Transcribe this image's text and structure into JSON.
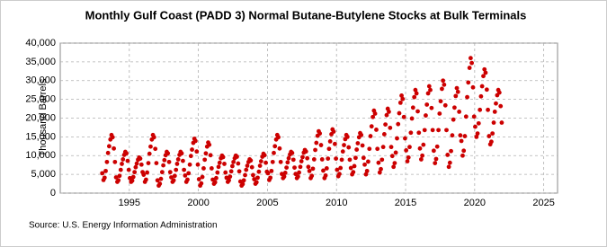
{
  "chart_data": {
    "type": "scatter",
    "title": "Monthly Gulf Coast (PADD 3) Normal Butane-Butylene Stocks at Bulk Terminals",
    "y_label": "Thousand Barrels",
    "source": "Source: U.S. Energy Information Administration",
    "color": "#cc0000",
    "grid": true,
    "xlim": [
      1990,
      2026
    ],
    "xticks": [
      1995,
      2000,
      2005,
      2010,
      2015,
      2020,
      2025
    ],
    "ylim": [
      0,
      40000
    ],
    "yticks": [
      {
        "value": 0,
        "label": "0"
      },
      {
        "value": 5000,
        "label": "5,000"
      },
      {
        "value": 10000,
        "label": "10,000"
      },
      {
        "value": 15000,
        "label": "15,000"
      },
      {
        "value": 20000,
        "label": "20,000"
      },
      {
        "value": 25000,
        "label": "25,000"
      },
      {
        "value": 30000,
        "label": "30,000"
      },
      {
        "value": 35000,
        "label": "35,000"
      },
      {
        "value": 40000,
        "label": "40,000"
      }
    ],
    "x": [
      1993.04,
      1993.13,
      1993.21,
      1993.29,
      1993.38,
      1993.46,
      1993.54,
      1993.63,
      1993.71,
      1993.79,
      1993.88,
      1993.96,
      1994.04,
      1994.13,
      1994.21,
      1994.29,
      1994.38,
      1994.46,
      1994.54,
      1994.63,
      1994.71,
      1994.79,
      1994.88,
      1994.96,
      1995.04,
      1995.13,
      1995.21,
      1995.29,
      1995.38,
      1995.46,
      1995.54,
      1995.63,
      1995.71,
      1995.79,
      1995.88,
      1995.96,
      1996.04,
      1996.13,
      1996.21,
      1996.29,
      1996.38,
      1996.46,
      1996.54,
      1996.63,
      1996.71,
      1996.79,
      1996.88,
      1996.96,
      1997.04,
      1997.13,
      1997.21,
      1997.29,
      1997.38,
      1997.46,
      1997.54,
      1997.63,
      1997.71,
      1997.79,
      1997.88,
      1997.96,
      1998.04,
      1998.13,
      1998.21,
      1998.29,
      1998.38,
      1998.46,
      1998.54,
      1998.63,
      1998.71,
      1998.79,
      1998.88,
      1998.96,
      1999.04,
      1999.13,
      1999.21,
      1999.29,
      1999.38,
      1999.46,
      1999.54,
      1999.63,
      1999.71,
      1999.79,
      1999.88,
      1999.96,
      2000.04,
      2000.13,
      2000.21,
      2000.29,
      2000.38,
      2000.46,
      2000.54,
      2000.63,
      2000.71,
      2000.79,
      2000.88,
      2000.96,
      2001.04,
      2001.13,
      2001.21,
      2001.29,
      2001.38,
      2001.46,
      2001.54,
      2001.63,
      2001.71,
      2001.79,
      2001.88,
      2001.96,
      2002.04,
      2002.13,
      2002.21,
      2002.29,
      2002.38,
      2002.46,
      2002.54,
      2002.63,
      2002.71,
      2002.79,
      2002.88,
      2002.96,
      2003.04,
      2003.13,
      2003.21,
      2003.29,
      2003.38,
      2003.46,
      2003.54,
      2003.63,
      2003.71,
      2003.79,
      2003.88,
      2003.96,
      2004.04,
      2004.13,
      2004.21,
      2004.29,
      2004.38,
      2004.46,
      2004.54,
      2004.63,
      2004.71,
      2004.79,
      2004.88,
      2004.96,
      2005.04,
      2005.13,
      2005.21,
      2005.29,
      2005.38,
      2005.46,
      2005.54,
      2005.63,
      2005.71,
      2005.79,
      2005.88,
      2005.96,
      2006.04,
      2006.13,
      2006.21,
      2006.29,
      2006.38,
      2006.46,
      2006.54,
      2006.63,
      2006.71,
      2006.79,
      2006.88,
      2006.96,
      2007.04,
      2007.13,
      2007.21,
      2007.29,
      2007.38,
      2007.46,
      2007.54,
      2007.63,
      2007.71,
      2007.79,
      2007.88,
      2007.96,
      2008.04,
      2008.13,
      2008.21,
      2008.29,
      2008.38,
      2008.46,
      2008.54,
      2008.63,
      2008.71,
      2008.79,
      2008.88,
      2008.96,
      2009.04,
      2009.13,
      2009.21,
      2009.29,
      2009.38,
      2009.46,
      2009.54,
      2009.63,
      2009.71,
      2009.79,
      2009.88,
      2009.96,
      2010.04,
      2010.13,
      2010.21,
      2010.29,
      2010.38,
      2010.46,
      2010.54,
      2010.63,
      2010.71,
      2010.79,
      2010.88,
      2010.96,
      2011.04,
      2011.13,
      2011.21,
      2011.29,
      2011.38,
      2011.46,
      2011.54,
      2011.63,
      2011.71,
      2011.79,
      2011.88,
      2011.96,
      2012.04,
      2012.13,
      2012.21,
      2012.29,
      2012.38,
      2012.46,
      2012.54,
      2012.63,
      2012.71,
      2012.79,
      2012.88,
      2012.96,
      2013.04,
      2013.13,
      2013.21,
      2013.29,
      2013.38,
      2013.46,
      2013.54,
      2013.63,
      2013.71,
      2013.79,
      2013.88,
      2013.96,
      2014.04,
      2014.13,
      2014.21,
      2014.29,
      2014.38,
      2014.46,
      2014.54,
      2014.63,
      2014.71,
      2014.79,
      2014.88,
      2014.96,
      2015.04,
      2015.13,
      2015.21,
      2015.29,
      2015.38,
      2015.46,
      2015.54,
      2015.63,
      2015.71,
      2015.79,
      2015.88,
      2015.96,
      2016.04,
      2016.13,
      2016.21,
      2016.29,
      2016.38,
      2016.46,
      2016.54,
      2016.63,
      2016.71,
      2016.79,
      2016.88,
      2016.96,
      2017.04,
      2017.13,
      2017.21,
      2017.29,
      2017.38,
      2017.46,
      2017.54,
      2017.63,
      2017.71,
      2017.79,
      2017.88,
      2017.96,
      2018.04,
      2018.13,
      2018.21,
      2018.29,
      2018.38,
      2018.46,
      2018.54,
      2018.63,
      2018.71,
      2018.79,
      2018.88,
      2018.96,
      2019.04,
      2019.13,
      2019.21,
      2019.29,
      2019.38,
      2019.46,
      2019.54,
      2019.63,
      2019.71,
      2019.79,
      2019.88,
      2019.96,
      2020.04,
      2020.13,
      2020.21,
      2020.29,
      2020.38,
      2020.46,
      2020.54,
      2020.63,
      2020.71,
      2020.79,
      2020.88,
      2020.96,
      2021.04,
      2021.13,
      2021.21,
      2021.29,
      2021.38,
      2021.46,
      2021.54,
      2021.63,
      2021.71,
      2021.79,
      2021.88,
      2021.96
    ],
    "values": [
      5300,
      3500,
      4100,
      5900,
      8300,
      10700,
      12500,
      14300,
      15500,
      14900,
      11900,
      8300,
      4200,
      3000,
      3400,
      4600,
      6200,
      7800,
      9000,
      10200,
      11000,
      10600,
      8600,
      6200,
      4000,
      3000,
      3300,
      4300,
      5600,
      6900,
      7900,
      8900,
      9500,
      9200,
      7600,
      5600,
      4900,
      3000,
      3600,
      5500,
      8000,
      10500,
      12400,
      14300,
      15500,
      14900,
      11800,
      8000,
      3400,
      2000,
      2500,
      3800,
      5600,
      7400,
      8800,
      10100,
      11000,
      10600,
      8300,
      5600,
      4200,
      3000,
      3400,
      4600,
      6200,
      7800,
      9000,
      10200,
      11000,
      10600,
      8600,
      6200,
      4700,
      3000,
      3600,
      5300,
      7600,
      9900,
      11600,
      13400,
      14500,
      13900,
      11100,
      7600,
      3700,
      2000,
      2600,
      4300,
      6600,
      8900,
      10600,
      12400,
      13500,
      12900,
      10100,
      6600,
      3600,
      2500,
      2900,
      4000,
      5500,
      7000,
      8100,
      9300,
      10000,
      9600,
      7800,
      5500,
      4100,
      3000,
      3400,
      4400,
      5800,
      7200,
      8300,
      9300,
      10000,
      9700,
      7900,
      5800,
      3100,
      2000,
      2400,
      3400,
      4800,
      6200,
      7300,
      8300,
      9000,
      8700,
      6900,
      4800,
      3700,
      2500,
      2900,
      4100,
      5700,
      7300,
      8500,
      9700,
      10500,
      10100,
      8100,
      5700,
      5300,
      3500,
      4100,
      5900,
      8300,
      10700,
      12500,
      14300,
      15500,
      14900,
      11900,
      8300,
      5100,
      4000,
      4400,
      5400,
      6800,
      8200,
      9300,
      10300,
      11000,
      10700,
      8900,
      6800,
      5100,
      4000,
      4400,
      5500,
      7000,
      8500,
      9600,
      10800,
      11500,
      11100,
      9300,
      7000,
      5900,
      4000,
      4600,
      6500,
      9000,
      11500,
      13400,
      15300,
      16500,
      15900,
      12800,
      9000,
      6000,
      4000,
      4700,
      6600,
      9200,
      11800,
      13800,
      15700,
      17000,
      16400,
      13100,
      9200,
      6200,
      4500,
      5100,
      6700,
      8900,
      11100,
      12800,
      14400,
      15500,
      15000,
      12200,
      8900,
      6700,
      5000,
      5600,
      7200,
      9400,
      11600,
      13300,
      14900,
      16000,
      15500,
      12700,
      9400,
      7600,
      5000,
      5900,
      8400,
      11800,
      15200,
      17800,
      20300,
      22000,
      21200,
      16900,
      11800,
      8100,
      5500,
      6400,
      8900,
      12300,
      15700,
      18300,
      20800,
      22500,
      21700,
      17400,
      12300,
      9900,
      7000,
      8000,
      10800,
      14600,
      18400,
      21300,
      24100,
      26000,
      25100,
      20300,
      14600,
      11400,
      8500,
      9500,
      12300,
      16100,
      19900,
      22800,
      25600,
      27500,
      26600,
      21800,
      16100,
      11900,
      9000,
      10000,
      12900,
      16800,
      20700,
      23600,
      26600,
      28500,
      27500,
      22700,
      16800,
      11300,
      8000,
      9100,
      12400,
      16800,
      21200,
      24500,
      27800,
      30000,
      28900,
      23400,
      16800,
      10200,
      7000,
      8100,
      11200,
      15400,
      19600,
      22800,
      25900,
      28000,
      27000,
      21700,
      15400,
      13900,
      10000,
      11300,
      15200,
      20400,
      25600,
      29500,
      33400,
      36000,
      34700,
      28200,
      20400,
      17700,
      15000,
      15900,
      18600,
      22200,
      25800,
      28500,
      31200,
      33000,
      32100,
      27600,
      22200,
      15200,
      13000,
      13700,
      15900,
      18800,
      21700,
      23900,
      26100,
      27500,
      26800,
      23200,
      18800
    ]
  }
}
